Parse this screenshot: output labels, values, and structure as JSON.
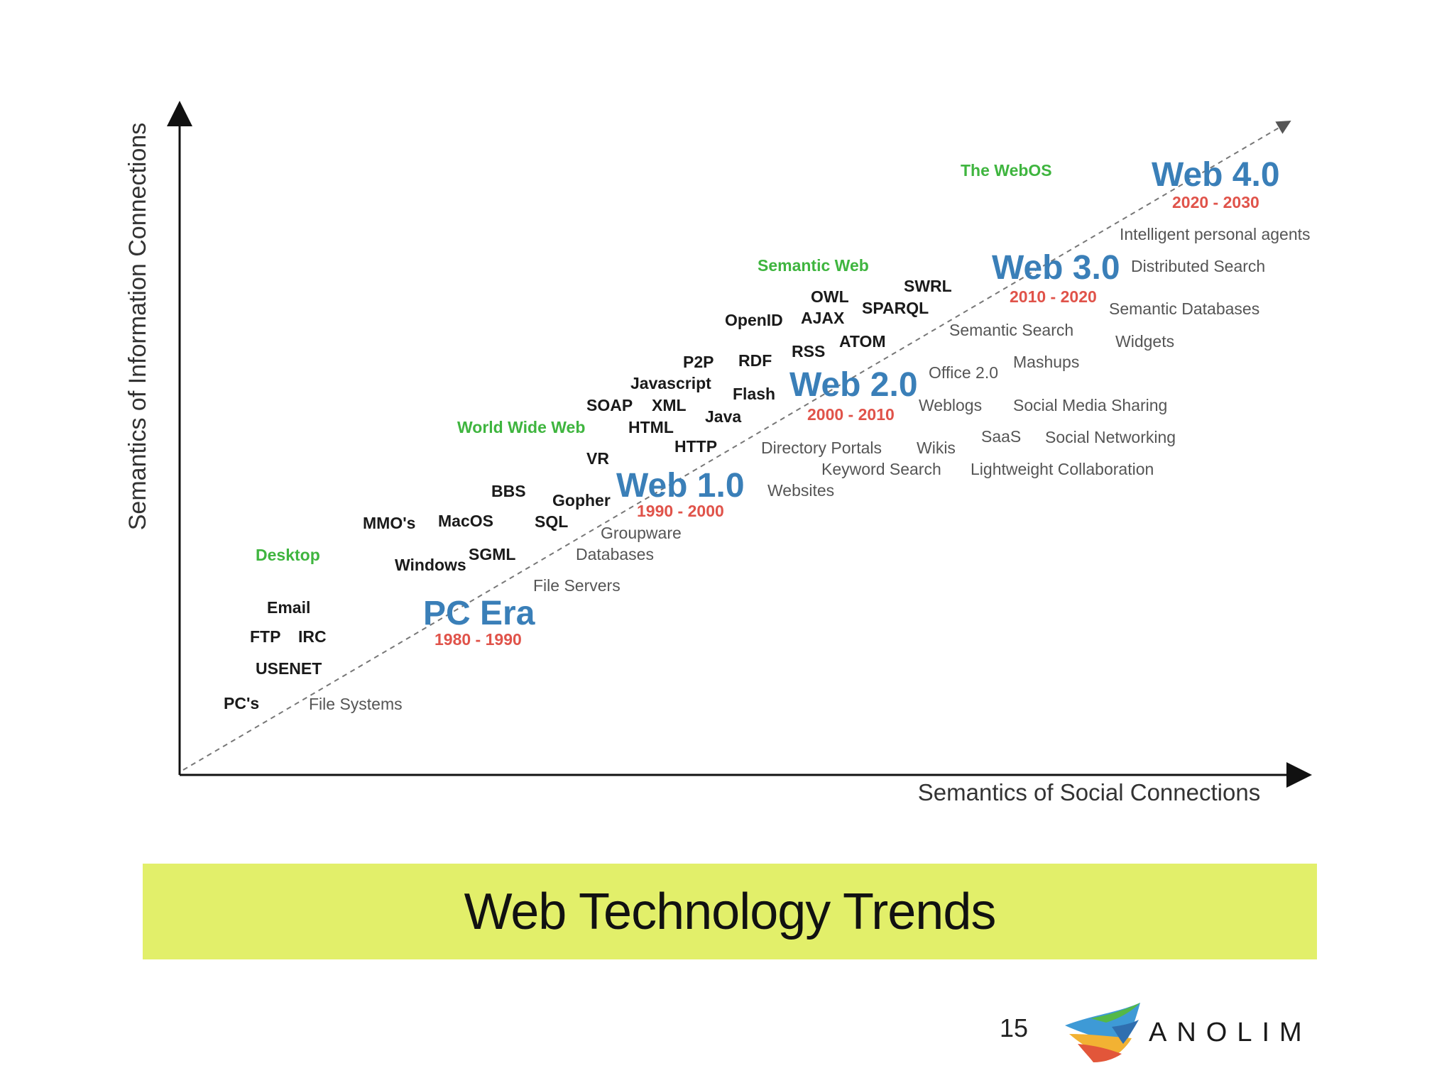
{
  "axes": {
    "x_label": "Semantics of Social Connections",
    "y_label": "Semantics of Information Connections"
  },
  "eras": [
    {
      "name": "PC Era",
      "years": "1980 - 1990"
    },
    {
      "name": "Web 1.0",
      "years": "1990 - 2000"
    },
    {
      "name": "Web 2.0",
      "years": "2000 - 2010"
    },
    {
      "name": "Web 3.0",
      "years": "2010 - 2020"
    },
    {
      "name": "Web 4.0",
      "years": "2020 - 2030"
    }
  ],
  "categories": [
    "Desktop",
    "World Wide Web",
    "Semantic Web",
    "The WebOS"
  ],
  "technologies": [
    "Email",
    "FTP",
    "IRC",
    "USENET",
    "PC's",
    "Windows",
    "SGML",
    "MMO's",
    "MacOS",
    "SQL",
    "BBS",
    "Gopher",
    "VR",
    "HTTP",
    "HTML",
    "Java",
    "SOAP",
    "XML",
    "Javascript",
    "Flash",
    "P2P",
    "RDF",
    "RSS",
    "ATOM",
    "OpenID",
    "AJAX",
    "OWL",
    "SPARQL",
    "SWRL"
  ],
  "applications": [
    "File Systems",
    "File Servers",
    "Databases",
    "Groupware",
    "Websites",
    "Keyword Search",
    "Directory Portals",
    "Wikis",
    "Weblogs",
    "Office 2.0",
    "Lightweight Collaboration",
    "SaaS",
    "Social Networking",
    "Social Media Sharing",
    "Mashups",
    "Semantic Search",
    "Widgets",
    "Semantic Databases",
    "Distributed Search",
    "Intelligent personal agents"
  ],
  "title": "Web Technology Trends",
  "page_number": "15",
  "logo_text": "ANOLIM",
  "colors": {
    "era": "#3a7fb8",
    "years": "#e0534a",
    "category": "#3fb53f",
    "tech": "#1a1a1a",
    "app": "#555555",
    "title_bar": "#e2ef6a"
  }
}
